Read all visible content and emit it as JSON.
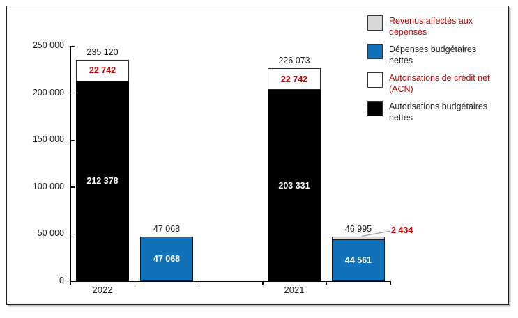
{
  "chart_data": {
    "type": "bar",
    "title": "",
    "grid": false,
    "legend_position": "top-right",
    "categories": [
      "2022",
      "2021"
    ],
    "y_axis": {
      "min": 0,
      "max": 250000,
      "ticks": [
        {
          "label": "0",
          "value": 0
        },
        {
          "label": "50 000",
          "value": 50000
        },
        {
          "label": "100 000",
          "value": 100000
        },
        {
          "label": "150 000",
          "value": 150000
        },
        {
          "label": "200 000",
          "value": 200000
        },
        {
          "label": "250 000",
          "value": 250000
        }
      ]
    },
    "series": [
      {
        "name": "Autorisations budgétaires nettes",
        "color": "#000000",
        "values": [
          212378,
          203331
        ]
      },
      {
        "name": "Autorisations de crédit net (ACN)",
        "color": "#FFFFFF",
        "values": [
          22742,
          22742
        ]
      },
      {
        "name": "Dépenses budgétaires nettes",
        "color": "#1172BA",
        "values": [
          47068,
          44561
        ]
      },
      {
        "name": "Revenus affectés aux dépenses",
        "color": "#D9D9D9",
        "values": [
          0,
          2434
        ]
      }
    ],
    "groups": [
      {
        "category": "2022",
        "stack": {
          "black": 212378,
          "acn": 22742,
          "total": 235120
        },
        "expense": {
          "blue": 47068,
          "gray": 0,
          "total": 47068
        },
        "labels": {
          "black": "212 378",
          "acn": "22 742",
          "total": "235 120",
          "blue": "47 068",
          "expense_total": "47 068"
        }
      },
      {
        "category": "2021",
        "stack": {
          "black": 203331,
          "acn": 22742,
          "total": 226073
        },
        "expense": {
          "blue": 44561,
          "gray": 2434,
          "total": 46995
        },
        "labels": {
          "black": "203 331",
          "acn": "22 742",
          "total": "226 073",
          "blue": "44 561",
          "gray": "2 434",
          "expense_total": "46 995"
        }
      }
    ],
    "legend": {
      "items": [
        {
          "label": "Revenus affectés aux dépenses",
          "swatch_color": "#D9D9D9",
          "text_color": "#C00000"
        },
        {
          "label": "Dépenses budgétaires nettes",
          "swatch_color": "#1172BA",
          "text_color": "#1A1A1A"
        },
        {
          "label": "Autorisations de crédit net (ACN)",
          "swatch_color": "#FFFFFF",
          "text_color": "#C00000"
        },
        {
          "label": "Autorisations budgétaires nettes",
          "swatch_color": "#000000",
          "text_color": "#1A1A1A"
        }
      ]
    },
    "annotation": {
      "label": "2 434"
    },
    "colors": {
      "blue": "#1172BA",
      "gray": "#D9D9D9",
      "black": "#000000",
      "white": "#FFFFFF",
      "red": "#C00000",
      "text": "#1A1A1A"
    }
  }
}
